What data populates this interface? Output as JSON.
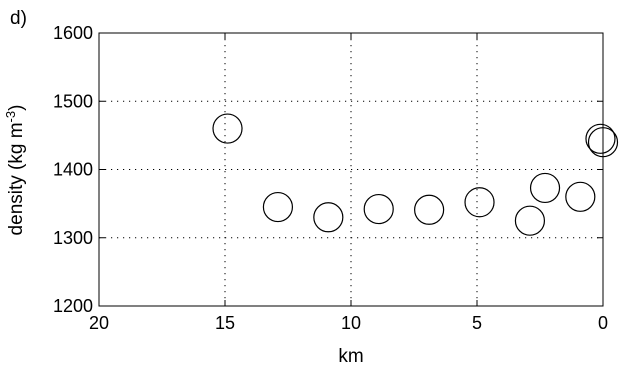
{
  "panel_label": "d)",
  "chart_data": {
    "type": "scatter",
    "xlabel": "km",
    "ylabel": "density (kg m",
    "ylabel_sup": "-3",
    "ylabel_close": ")",
    "xlim": [
      20,
      0
    ],
    "x_reversed": true,
    "ylim": [
      1200,
      1600
    ],
    "xticks": [
      20,
      15,
      10,
      5,
      0
    ],
    "yticks": [
      1200,
      1300,
      1400,
      1500,
      1600
    ],
    "grid": true,
    "grid_style": "dotted",
    "marker": "open-circle",
    "points": [
      {
        "x": 14.9,
        "y": 1460
      },
      {
        "x": 12.9,
        "y": 1345
      },
      {
        "x": 10.9,
        "y": 1330
      },
      {
        "x": 8.9,
        "y": 1342
      },
      {
        "x": 6.9,
        "y": 1341
      },
      {
        "x": 4.9,
        "y": 1352
      },
      {
        "x": 2.9,
        "y": 1325
      },
      {
        "x": 2.3,
        "y": 1373
      },
      {
        "x": 0.9,
        "y": 1360
      },
      {
        "x": 0.1,
        "y": 1445
      },
      {
        "x": 0.0,
        "y": 1440
      }
    ]
  }
}
